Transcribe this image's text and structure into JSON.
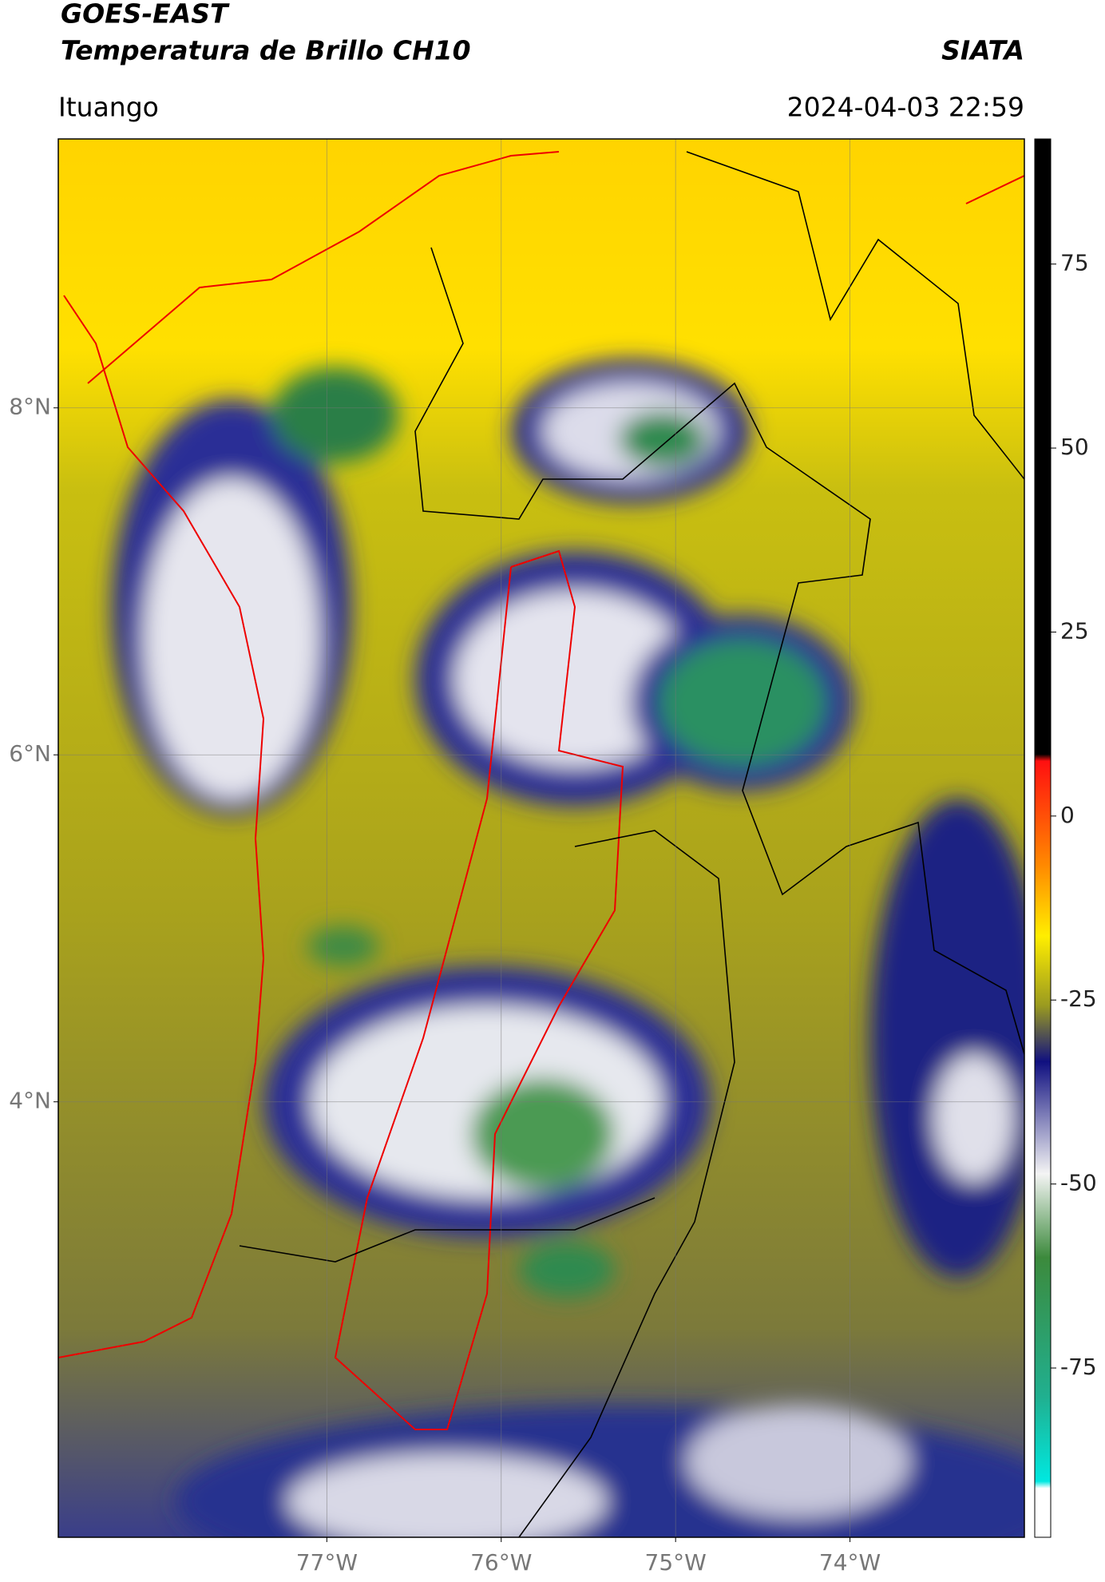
{
  "header": {
    "title": "GOES-EAST",
    "subtitle": "Temperatura de Brillo CH10",
    "source": "SIATA",
    "location": "Ituango",
    "datetime": "2024-04-03 22:59"
  },
  "chart_data": {
    "type": "map",
    "xlim": [
      -78.54,
      -73.0
    ],
    "ylim": [
      1.49,
      9.55
    ],
    "xticks": [
      {
        "value": -77,
        "label": "77°W"
      },
      {
        "value": -76,
        "label": "76°W"
      },
      {
        "value": -75,
        "label": "75°W"
      },
      {
        "value": -74,
        "label": "74°W"
      }
    ],
    "yticks": [
      {
        "value": 8,
        "label": "8°N"
      },
      {
        "value": 6,
        "label": "6°N"
      },
      {
        "value": 4,
        "label": "4°N"
      }
    ],
    "grid": true,
    "colorbar": {
      "lim": [
        -98,
        92
      ],
      "ticks": [
        75,
        50,
        25,
        0,
        -25,
        -50,
        -75
      ]
    }
  }
}
